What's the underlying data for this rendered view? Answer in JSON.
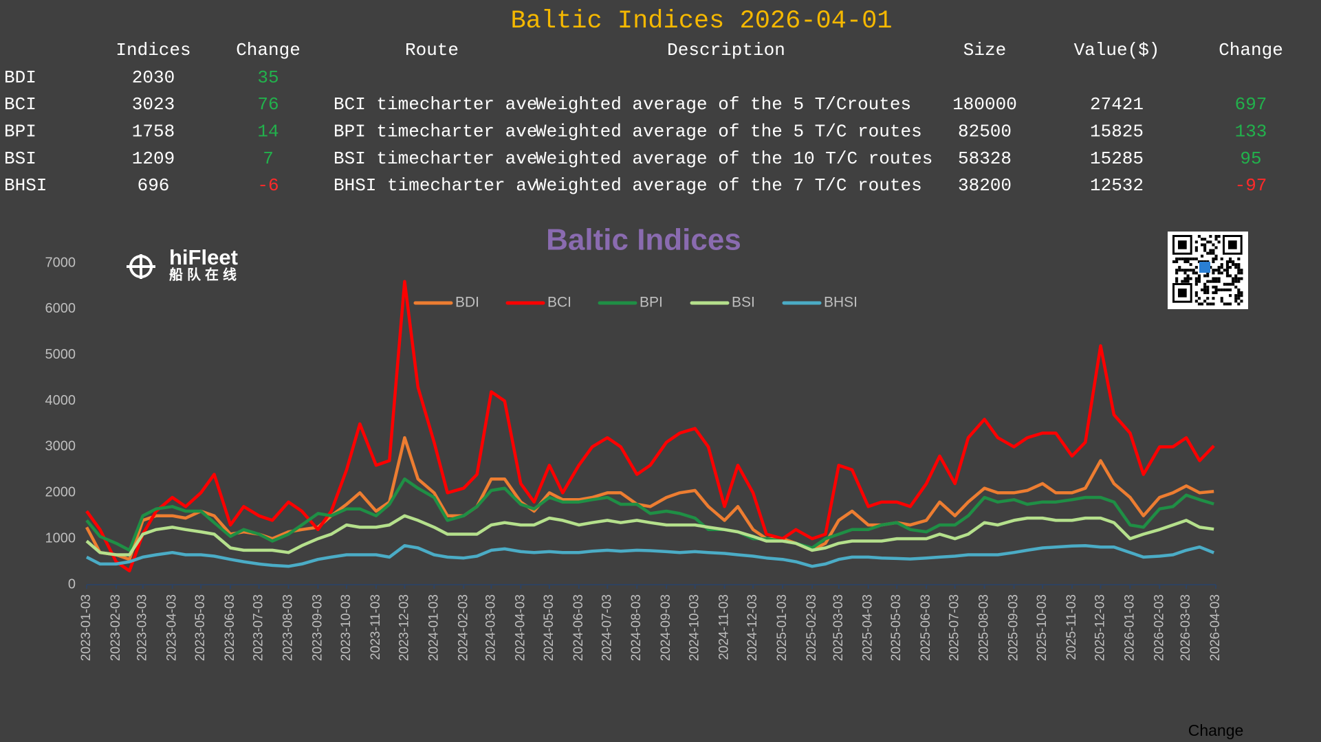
{
  "header": {
    "title": "Baltic Indices 2026-04-01"
  },
  "table": {
    "columns": [
      "Indices",
      "Change",
      "Route",
      "Description",
      "Size",
      "Value($)",
      "Change"
    ],
    "rows": [
      {
        "name": "BDI",
        "index": 2030,
        "change": 35
      },
      {
        "name": "BCI",
        "index": 3023,
        "change": 76,
        "route": "BCI timecharter ave",
        "description": "Weighted average of the 5 T/Croutes",
        "size": 180000,
        "value": 27421,
        "value_change": 697
      },
      {
        "name": "BPI",
        "index": 1758,
        "change": 14,
        "route": "BPI timecharter ave",
        "description": "Weighted average of the 5 T/C routes",
        "size": 82500,
        "value": 15825,
        "value_change": 133
      },
      {
        "name": "BSI",
        "index": 1209,
        "change": 7,
        "route": "BSI timecharter ave",
        "description": "Weighted average of the 10 T/C routes",
        "size": 58328,
        "value": 15285,
        "value_change": 95
      },
      {
        "name": "BHSI",
        "index": 696,
        "change": -6,
        "route": "BHSI timecharter av",
        "description": "Weighted average of the 7 T/C routes",
        "size": 38200,
        "value": 12532,
        "value_change": -97
      }
    ]
  },
  "logo": {
    "name": "hiFleet",
    "subtitle": "船队在线"
  },
  "footer": "Change",
  "chart_data": {
    "type": "line",
    "title": "Baltic Indices",
    "x": [
      "2023-01-03",
      "2023-01-17",
      "2023-02-03",
      "2023-02-17",
      "2023-03-03",
      "2023-03-17",
      "2023-04-03",
      "2023-04-17",
      "2023-05-03",
      "2023-05-17",
      "2023-06-03",
      "2023-06-17",
      "2023-07-03",
      "2023-07-17",
      "2023-08-03",
      "2023-08-17",
      "2023-09-03",
      "2023-09-17",
      "2023-10-03",
      "2023-10-17",
      "2023-11-03",
      "2023-11-17",
      "2023-12-03",
      "2023-12-17",
      "2024-01-03",
      "2024-01-17",
      "2024-02-03",
      "2024-02-17",
      "2024-03-03",
      "2024-03-17",
      "2024-04-03",
      "2024-04-17",
      "2024-05-03",
      "2024-05-17",
      "2024-06-03",
      "2024-06-17",
      "2024-07-03",
      "2024-07-17",
      "2024-08-03",
      "2024-08-17",
      "2024-09-03",
      "2024-09-17",
      "2024-10-03",
      "2024-10-17",
      "2024-11-03",
      "2024-11-17",
      "2024-12-03",
      "2024-12-17",
      "2025-01-03",
      "2025-01-17",
      "2025-02-03",
      "2025-02-17",
      "2025-03-03",
      "2025-03-17",
      "2025-04-03",
      "2025-04-17",
      "2025-05-03",
      "2025-05-17",
      "2025-06-03",
      "2025-06-17",
      "2025-07-03",
      "2025-07-17",
      "2025-08-03",
      "2025-08-17",
      "2025-09-03",
      "2025-09-17",
      "2025-10-03",
      "2025-10-17",
      "2025-11-03",
      "2025-11-17",
      "2025-12-03",
      "2025-12-17",
      "2026-01-03",
      "2026-01-17",
      "2026-02-03",
      "2026-02-17",
      "2026-03-03",
      "2026-03-17",
      "2026-04-01"
    ],
    "series": [
      {
        "name": "BDI",
        "color": "#ed7d31",
        "values": [
          1250,
          700,
          650,
          550,
          1400,
          1500,
          1500,
          1450,
          1600,
          1500,
          1100,
          1150,
          1100,
          1000,
          1150,
          1200,
          1250,
          1500,
          1750,
          2000,
          1600,
          1800,
          3200,
          2300,
          2000,
          1500,
          1500,
          1700,
          2300,
          2300,
          1800,
          1600,
          2000,
          1850,
          1850,
          1900,
          2000,
          2000,
          1750,
          1700,
          1900,
          2000,
          2050,
          1700,
          1400,
          1700,
          1200,
          1000,
          1000,
          900,
          750,
          900,
          1400,
          1600,
          1300,
          1300,
          1350,
          1300,
          1400,
          1800,
          1500,
          1800,
          2100,
          2000,
          2000,
          2050,
          2200,
          2000,
          2000,
          2100,
          2700,
          2200,
          1900,
          1500,
          1900,
          2000,
          2150,
          2000,
          2030
        ]
      },
      {
        "name": "BCI",
        "color": "#ff0000",
        "values": [
          1600,
          1200,
          500,
          300,
          1100,
          1600,
          1900,
          1700,
          2000,
          2400,
          1300,
          1700,
          1500,
          1400,
          1800,
          1600,
          1200,
          1600,
          2500,
          3500,
          2600,
          2700,
          6600,
          4300,
          3100,
          2000,
          2100,
          2400,
          4200,
          4000,
          2200,
          1800,
          2600,
          2000,
          2600,
          3000,
          3200,
          3000,
          2400,
          2600,
          3100,
          3300,
          3400,
          3000,
          1700,
          2600,
          2000,
          1100,
          1000,
          1200,
          1000,
          1100,
          2600,
          2500,
          1700,
          1800,
          1800,
          1700,
          2200,
          2800,
          2200,
          3200,
          3600,
          3200,
          3000,
          3200,
          3300,
          3300,
          2800,
          3100,
          5200,
          3700,
          3300,
          2400,
          3000,
          3000,
          3200,
          2700,
          3023
        ]
      },
      {
        "name": "BPI",
        "color": "#1f8f45",
        "values": [
          1400,
          1050,
          900,
          750,
          1500,
          1650,
          1700,
          1600,
          1600,
          1350,
          1050,
          1200,
          1100,
          950,
          1100,
          1300,
          1550,
          1500,
          1650,
          1650,
          1500,
          1750,
          2300,
          2100,
          1900,
          1400,
          1500,
          1700,
          2050,
          2100,
          1750,
          1650,
          1900,
          1800,
          1800,
          1850,
          1900,
          1750,
          1750,
          1550,
          1600,
          1550,
          1450,
          1200,
          1200,
          1150,
          1000,
          1000,
          950,
          900,
          800,
          1000,
          1100,
          1200,
          1200,
          1300,
          1350,
          1200,
          1150,
          1300,
          1300,
          1500,
          1900,
          1800,
          1850,
          1750,
          1800,
          1800,
          1850,
          1900,
          1900,
          1800,
          1300,
          1250,
          1650,
          1700,
          1950,
          1850,
          1758
        ]
      },
      {
        "name": "BSI",
        "color": "#b5e08c",
        "values": [
          950,
          700,
          650,
          650,
          1100,
          1200,
          1250,
          1200,
          1150,
          1100,
          800,
          750,
          750,
          750,
          700,
          850,
          1000,
          1100,
          1300,
          1250,
          1250,
          1300,
          1500,
          1400,
          1250,
          1100,
          1100,
          1100,
          1300,
          1350,
          1300,
          1300,
          1450,
          1400,
          1300,
          1350,
          1400,
          1350,
          1400,
          1350,
          1300,
          1300,
          1300,
          1250,
          1200,
          1150,
          1050,
          950,
          950,
          900,
          750,
          800,
          900,
          950,
          950,
          950,
          1000,
          1000,
          1000,
          1100,
          1000,
          1100,
          1350,
          1300,
          1400,
          1450,
          1450,
          1400,
          1400,
          1450,
          1450,
          1350,
          1000,
          1100,
          1200,
          1300,
          1400,
          1250,
          1209
        ]
      },
      {
        "name": "BHSI",
        "color": "#4bacc6",
        "values": [
          600,
          450,
          450,
          500,
          600,
          650,
          700,
          650,
          650,
          620,
          550,
          500,
          450,
          420,
          400,
          450,
          550,
          600,
          650,
          650,
          650,
          600,
          850,
          800,
          650,
          600,
          580,
          620,
          750,
          780,
          720,
          700,
          720,
          700,
          700,
          730,
          750,
          730,
          750,
          740,
          720,
          700,
          720,
          700,
          680,
          650,
          620,
          580,
          550,
          500,
          400,
          450,
          550,
          600,
          600,
          580,
          570,
          560,
          580,
          600,
          620,
          650,
          650,
          650,
          700,
          750,
          800,
          820,
          840,
          850,
          820,
          820,
          700,
          600,
          620,
          650,
          750,
          820,
          696
        ]
      }
    ],
    "xlim": [
      "2023-01-03",
      "2026-04-03"
    ],
    "xticks": [
      "2023-01-03",
      "2023-02-03",
      "2023-03-03",
      "2023-04-03",
      "2023-05-03",
      "2023-06-03",
      "2023-07-03",
      "2023-08-03",
      "2023-09-03",
      "2023-10-03",
      "2023-11-03",
      "2023-12-03",
      "2024-01-03",
      "2024-02-03",
      "2024-03-03",
      "2024-04-03",
      "2024-05-03",
      "2024-06-03",
      "2024-07-03",
      "2024-08-03",
      "2024-09-03",
      "2024-10-03",
      "2024-11-03",
      "2024-12-03",
      "2025-01-03",
      "2025-02-03",
      "2025-03-03",
      "2025-04-03",
      "2025-05-03",
      "2025-06-03",
      "2025-07-03",
      "2025-08-03",
      "2025-09-03",
      "2025-10-03",
      "2025-11-03",
      "2025-12-03",
      "2026-01-03",
      "2026-02-03",
      "2026-03-03",
      "2026-04-03"
    ],
    "ylim": [
      0,
      7000
    ],
    "yticks": [
      0,
      1000,
      2000,
      3000,
      4000,
      5000,
      6000,
      7000
    ],
    "grid": false,
    "legend": "top"
  }
}
